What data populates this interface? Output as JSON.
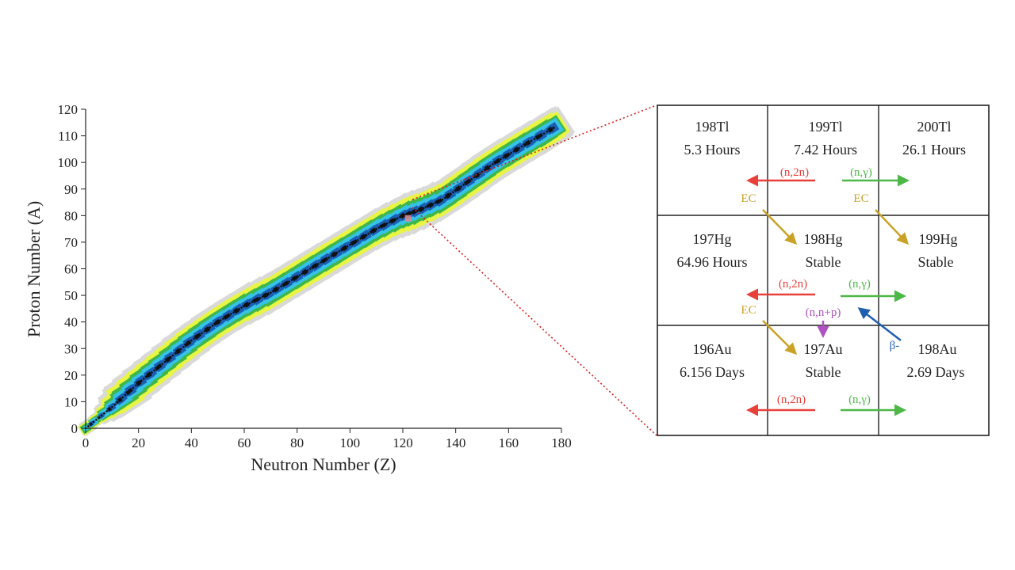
{
  "chart_data": {
    "type": "heatmap",
    "title": "",
    "xlabel": "Neutron Number (Z)",
    "ylabel": "Proton Number (A)",
    "xlim": [
      0,
      180
    ],
    "ylim": [
      0,
      120
    ],
    "xticks": [
      0,
      20,
      40,
      60,
      80,
      100,
      120,
      140,
      160,
      180
    ],
    "yticks": [
      0,
      10,
      20,
      30,
      40,
      50,
      60,
      70,
      80,
      90,
      100,
      110,
      120
    ],
    "grid": false,
    "stability_line": [
      [
        0,
        0
      ],
      [
        10,
        8
      ],
      [
        20,
        17
      ],
      [
        30,
        25
      ],
      [
        40,
        33
      ],
      [
        50,
        40
      ],
      [
        60,
        46
      ],
      [
        70,
        51
      ],
      [
        80,
        57
      ],
      [
        90,
        63
      ],
      [
        100,
        69
      ],
      [
        110,
        75
      ],
      [
        120,
        80
      ],
      [
        126,
        82
      ],
      [
        135,
        86
      ],
      [
        145,
        93
      ],
      [
        155,
        100
      ],
      [
        165,
        106
      ],
      [
        177,
        113
      ]
    ],
    "band_half_widths": [
      {
        "color": "#d9d9d9",
        "width": 9
      },
      {
        "color": "#e8f542",
        "width": 7
      },
      {
        "color": "#3fb64a",
        "width": 5
      },
      {
        "color": "#35c3e6",
        "width": 3.5
      },
      {
        "color": "#1a5fb4",
        "width": 1.8
      },
      {
        "color": "#111111",
        "width": 0.6
      }
    ],
    "zoom_region_center": [
      122,
      79
    ]
  },
  "colors": {
    "ec": "#c9a227",
    "n2n": "#e8413c",
    "ng": "#4db848",
    "nnp": "#b052c2",
    "beta": "#1f5fb0",
    "zoom_line": "#d42020",
    "grid_border": "#222222"
  },
  "grid": {
    "cells": [
      {
        "name": "198Tl",
        "half_life": "5.3 Hours"
      },
      {
        "name": "199Tl",
        "half_life": "7.42 Hours"
      },
      {
        "name": "200Tl",
        "half_life": "26.1 Hours"
      },
      {
        "name": "197Hg",
        "half_life": "64.96 Hours"
      },
      {
        "name": "198Hg",
        "half_life": "Stable"
      },
      {
        "name": "199Hg",
        "half_life": "Stable"
      },
      {
        "name": "196Au",
        "half_life": "6.156 Days"
      },
      {
        "name": "197Au",
        "half_life": "Stable"
      },
      {
        "name": "198Au",
        "half_life": "2.69 Days"
      }
    ],
    "reactions": {
      "n2n": "(n,2n)",
      "ng": "(n,γ)",
      "ec": "EC",
      "nnp": "(n,n+p)",
      "beta": "β-"
    }
  }
}
